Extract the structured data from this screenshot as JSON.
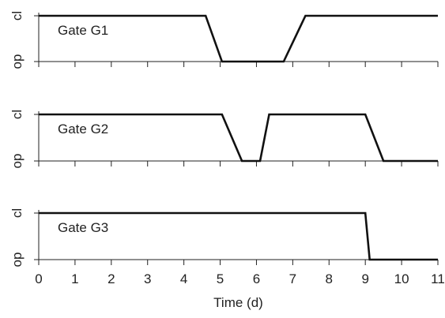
{
  "chart_data": [
    {
      "type": "line",
      "title": "Gate G1",
      "y_levels": [
        "op",
        "cl"
      ],
      "xlim": [
        0,
        11
      ],
      "ylim": [
        0,
        1
      ],
      "x": [
        0,
        4.6,
        5.05,
        6.75,
        7.35,
        11
      ],
      "values": [
        1,
        1,
        0,
        0,
        1,
        1
      ]
    },
    {
      "type": "line",
      "title": "Gate G2",
      "y_levels": [
        "op",
        "cl"
      ],
      "xlim": [
        0,
        11
      ],
      "ylim": [
        0,
        1
      ],
      "x": [
        0,
        5.05,
        5.6,
        6.1,
        6.35,
        9.0,
        9.5,
        11
      ],
      "values": [
        1,
        1,
        0,
        0,
        1,
        1,
        0,
        0
      ]
    },
    {
      "type": "line",
      "title": "Gate G3",
      "y_levels": [
        "op",
        "cl"
      ],
      "xlim": [
        0,
        11
      ],
      "ylim": [
        0,
        1
      ],
      "x": [
        0,
        9.0,
        9.12,
        11
      ],
      "values": [
        1,
        1,
        0,
        0
      ]
    }
  ],
  "x_axis": {
    "label": "Time (d)",
    "ticks": [
      "0",
      "1",
      "2",
      "3",
      "4",
      "5",
      "6",
      "7",
      "8",
      "9",
      "10",
      "11"
    ]
  }
}
